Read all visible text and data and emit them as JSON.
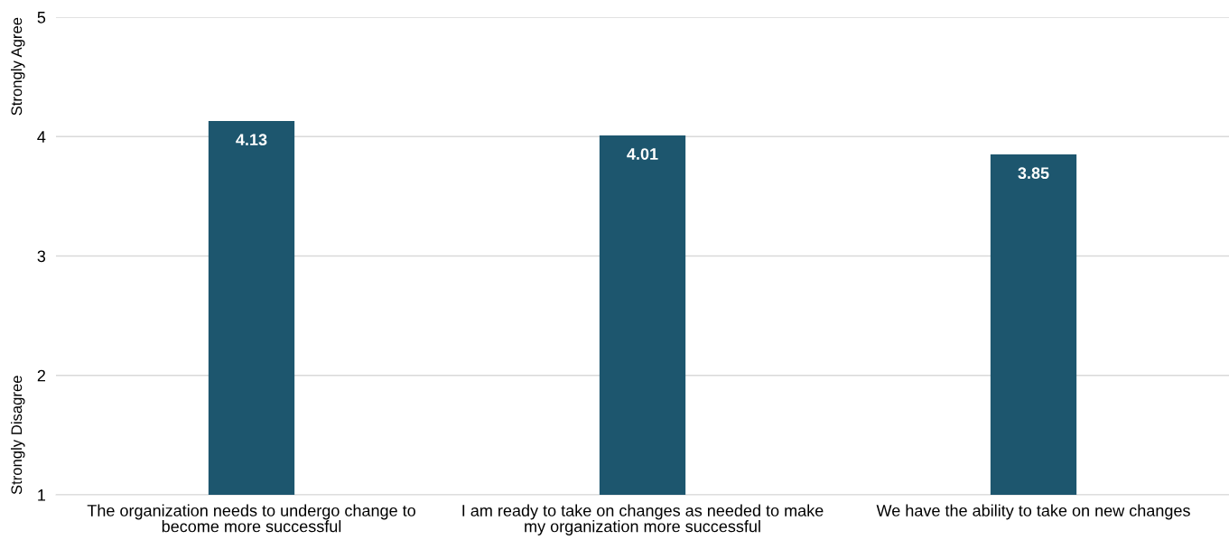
{
  "chart_data": {
    "type": "bar",
    "categories": [
      "The organization needs to undergo change to become more successful",
      "I am ready to take on changes as needed to make my organization more successful",
      "We have the ability to take on new changes"
    ],
    "values": [
      4.13,
      4.01,
      3.85
    ],
    "color": "#1d566e",
    "ylim": [
      1,
      5
    ],
    "yticks": [
      1,
      2,
      3,
      4,
      5
    ],
    "grid": "y",
    "data_labels": true,
    "annotations": [
      "Strongly Agree",
      "Strongly Disagree"
    ]
  }
}
